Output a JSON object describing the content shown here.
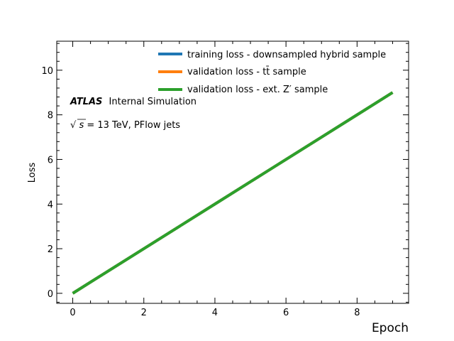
{
  "chart_data": {
    "type": "line",
    "x": [
      0,
      1,
      2,
      3,
      4,
      5,
      6,
      7,
      8,
      9
    ],
    "series": [
      {
        "name": "training loss - downsampled hybrid sample",
        "color": "#1f77b4",
        "values": [
          0,
          1,
          2,
          3,
          4,
          5,
          6,
          7,
          8,
          9
        ]
      },
      {
        "name": "validation loss - tt̄ sample",
        "color": "#ff7f0e",
        "values": [
          0,
          1,
          2,
          3,
          4,
          5,
          6,
          7,
          8,
          9
        ]
      },
      {
        "name": "validation loss - ext. Z′ sample",
        "color": "#2ca02c",
        "values": [
          0,
          1,
          2,
          3,
          4,
          5,
          6,
          7,
          8,
          9
        ]
      }
    ],
    "xlabel": "Epoch",
    "ylabel": "Loss",
    "xlim": [
      -0.45,
      9.45
    ],
    "ylim": [
      -0.45,
      11.3
    ],
    "xticks": [
      0,
      2,
      4,
      6,
      8
    ],
    "xtick_labels": [
      "0",
      "2",
      "4",
      "6",
      "8"
    ],
    "yticks": [
      0,
      2,
      4,
      6,
      8,
      10
    ],
    "ytick_labels": [
      "0",
      "2",
      "4",
      "6",
      "8",
      "10"
    ],
    "x_minor_step": 0.5,
    "y_minor_step": 0.4,
    "grid": false,
    "legend_position": "top-right",
    "annotations": {
      "atlas": "ATLAS",
      "atlas_suffix": "Internal Simulation",
      "sqrt_symbol": "√",
      "sqrt_arg": "s",
      "energy_text": " = 13 TeV, PFlow jets"
    }
  }
}
